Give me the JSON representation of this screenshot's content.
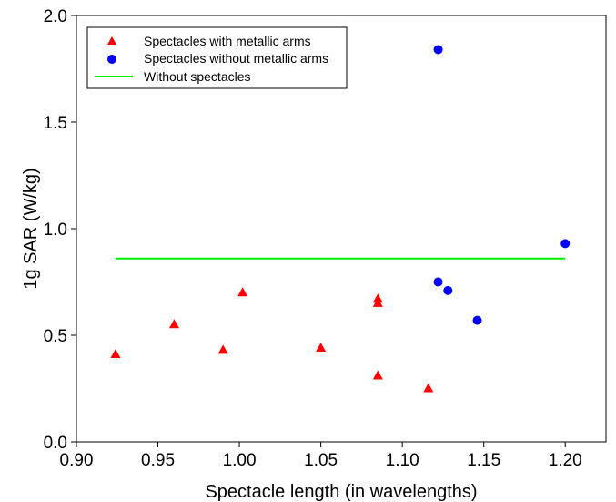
{
  "chart_data": {
    "type": "scatter",
    "xlabel": "Spectacle length (in wavelengths)",
    "ylabel": "1g SAR (W/kg)",
    "xlim": [
      0.9,
      1.225
    ],
    "ylim": [
      0.0,
      2.0
    ],
    "xticks": [
      0.9,
      0.95,
      1.0,
      1.05,
      1.1,
      1.15,
      1.2
    ],
    "yticks": [
      0.0,
      0.5,
      1.0,
      1.5,
      2.0
    ],
    "xtick_labels": [
      "0.90",
      "0.95",
      "1.00",
      "1.05",
      "1.10",
      "1.15",
      "1.20"
    ],
    "ytick_labels": [
      "0.0",
      "0.5",
      "1.0",
      "1.5",
      "2.0"
    ],
    "grid": false,
    "legend_position": "top-left",
    "series": [
      {
        "name": "Spectacles with metallic arms",
        "marker": "triangle",
        "color": "#ff0000",
        "points": [
          {
            "x": 0.924,
            "y": 0.41
          },
          {
            "x": 0.96,
            "y": 0.55
          },
          {
            "x": 0.99,
            "y": 0.43
          },
          {
            "x": 1.002,
            "y": 0.7
          },
          {
            "x": 1.05,
            "y": 0.44
          },
          {
            "x": 1.085,
            "y": 0.67
          },
          {
            "x": 1.085,
            "y": 0.65
          },
          {
            "x": 1.085,
            "y": 0.31
          },
          {
            "x": 1.116,
            "y": 0.25
          }
        ]
      },
      {
        "name": "Spectacles without metallic arms",
        "marker": "circle",
        "color": "#0000ff",
        "points": [
          {
            "x": 1.122,
            "y": 1.84
          },
          {
            "x": 1.2,
            "y": 0.93
          },
          {
            "x": 1.122,
            "y": 0.75
          },
          {
            "x": 1.128,
            "y": 0.71
          },
          {
            "x": 1.146,
            "y": 0.57
          }
        ]
      },
      {
        "name": "Without spectacles",
        "marker": "line",
        "color": "#00ee00",
        "points": [
          {
            "x": 0.924,
            "y": 0.86
          },
          {
            "x": 1.2,
            "y": 0.86
          }
        ]
      }
    ]
  }
}
